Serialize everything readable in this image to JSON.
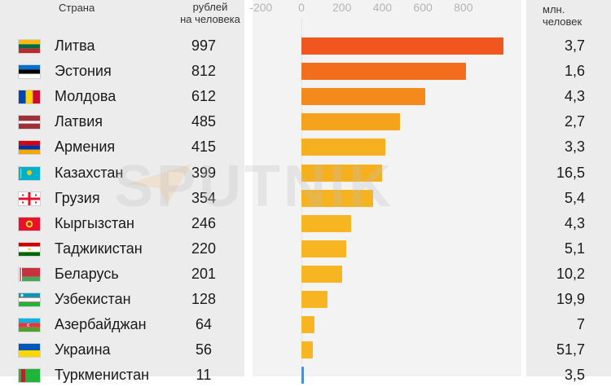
{
  "headers": {
    "country": "Страна",
    "rub_line1": "рублей",
    "rub_line2": "на человека",
    "mln_line1": "млн.",
    "mln_line2": "человек"
  },
  "watermark": "SPUTNIK",
  "chart_data": {
    "type": "bar",
    "orientation": "horizontal",
    "x_ticks": [
      -200,
      0,
      200,
      400,
      600,
      800
    ],
    "xlim": [
      -250,
      1000
    ],
    "grid": false,
    "categories": [
      "Литва",
      "Эстония",
      "Молдова",
      "Латвия",
      "Армения",
      "Казахстан",
      "Грузия",
      "Кыргызстан",
      "Таджикистан",
      "Беларусь",
      "Узбекистан",
      "Азербайджан",
      "Украина",
      "Туркменистан"
    ],
    "values": [
      997,
      812,
      612,
      485,
      415,
      399,
      354,
      246,
      220,
      201,
      128,
      64,
      56,
      11
    ],
    "population": [
      "3,7",
      "1,6",
      "4,3",
      "2,7",
      "3,3",
      "16,5",
      "5,4",
      "4,3",
      "5,1",
      "10,2",
      "19,9",
      "7",
      "51,7",
      "3,5"
    ],
    "flags": [
      "lithuania-flag",
      "estonia-flag",
      "moldova-flag",
      "latvia-flag",
      "armenia-flag",
      "kazakhstan-flag",
      "georgia-flag",
      "kyrgyzstan-flag",
      "tajikistan-flag",
      "belarus-flag",
      "uzbekistan-flag",
      "azerbaijan-flag",
      "ukraine-flag",
      "turkmenistan-flag"
    ],
    "bar_colors": [
      "#f0561e",
      "#f26e1d",
      "#f48a1c",
      "#f5a21d",
      "#f6af1e",
      "#f6b01e",
      "#f7b31e",
      "#f7b521",
      "#f7b521",
      "#f7b521",
      "#f7b521",
      "#f7b521",
      "#f7b521",
      "#4a90d9"
    ]
  }
}
